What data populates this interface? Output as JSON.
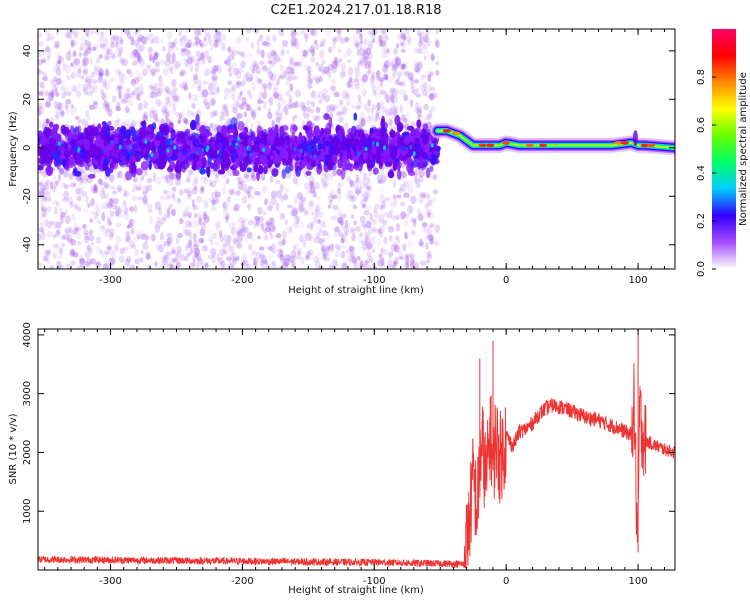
{
  "title": "C2E1.2024.217.01.18.R18",
  "chart_data": [
    {
      "type": "heatmap",
      "xlabel": "Height of straight line (km)",
      "ylabel": "Frequency (Hz)",
      "xlim": [
        -355,
        128
      ],
      "ylim": [
        -50,
        49
      ],
      "xticks": [
        -300,
        -200,
        -100,
        0,
        100
      ],
      "yticks": [
        -40,
        -20,
        0,
        20,
        40
      ],
      "colorbar": {
        "label": "Normalized spectral amplitude",
        "range": [
          0,
          1
        ],
        "ticks": [
          "0.0",
          "0.2",
          "0.4",
          "0.6",
          "0.8"
        ],
        "colors": [
          "#ffffff",
          "#a64dff",
          "#3300ff",
          "#00ccff",
          "#00ff66",
          "#66ff00",
          "#ffff00",
          "#ff8800",
          "#ff0000",
          "#ff0066"
        ]
      },
      "noise_region_km": [
        -355,
        -52
      ],
      "trace": {
        "x": [
          -52,
          -45,
          -35,
          -25,
          -15,
          -5,
          0,
          10,
          40,
          80,
          95,
          100,
          105,
          128
        ],
        "y": [
          7,
          7,
          5,
          1,
          1,
          1,
          2,
          1,
          1,
          1,
          2,
          1,
          1,
          0
        ]
      }
    },
    {
      "type": "line",
      "xlabel": "Height of straight line (km)",
      "ylabel": "SNR (10 * v/v)",
      "xlim": [
        -355,
        128
      ],
      "ylim": [
        0,
        4100
      ],
      "xticks": [
        -300,
        -200,
        -100,
        0,
        100
      ],
      "yticks": [
        1000,
        2000,
        3000,
        4000
      ],
      "line_color": "#ee3333",
      "series": [
        {
          "x": [
            -355,
            -300,
            -250,
            -200,
            -150,
            -100,
            -50,
            -32,
            -28,
            -25,
            -22,
            -20,
            -18,
            -15,
            -12,
            -10,
            -8,
            -5,
            -2,
            0,
            5,
            10,
            15,
            20,
            25,
            30,
            35,
            40,
            50,
            60,
            70,
            80,
            85,
            90,
            95,
            97,
            99,
            100,
            101,
            103,
            105,
            110,
            115,
            120,
            128
          ],
          "y": [
            180,
            170,
            160,
            150,
            140,
            130,
            110,
            100,
            800,
            1600,
            1000,
            1800,
            2100,
            1500,
            2400,
            1700,
            2300,
            1900,
            2050,
            2300,
            2100,
            2350,
            2400,
            2500,
            2650,
            2750,
            2800,
            2780,
            2700,
            2600,
            2550,
            2450,
            2420,
            2350,
            2300,
            2900,
            900,
            300,
            2700,
            2400,
            2200,
            2150,
            2100,
            2050,
            2000
          ]
        }
      ],
      "spikes": [
        {
          "x": -20,
          "y": 3600
        },
        {
          "x": -10,
          "y": 3900
        },
        {
          "x": 100,
          "y": 4100
        }
      ]
    }
  ]
}
